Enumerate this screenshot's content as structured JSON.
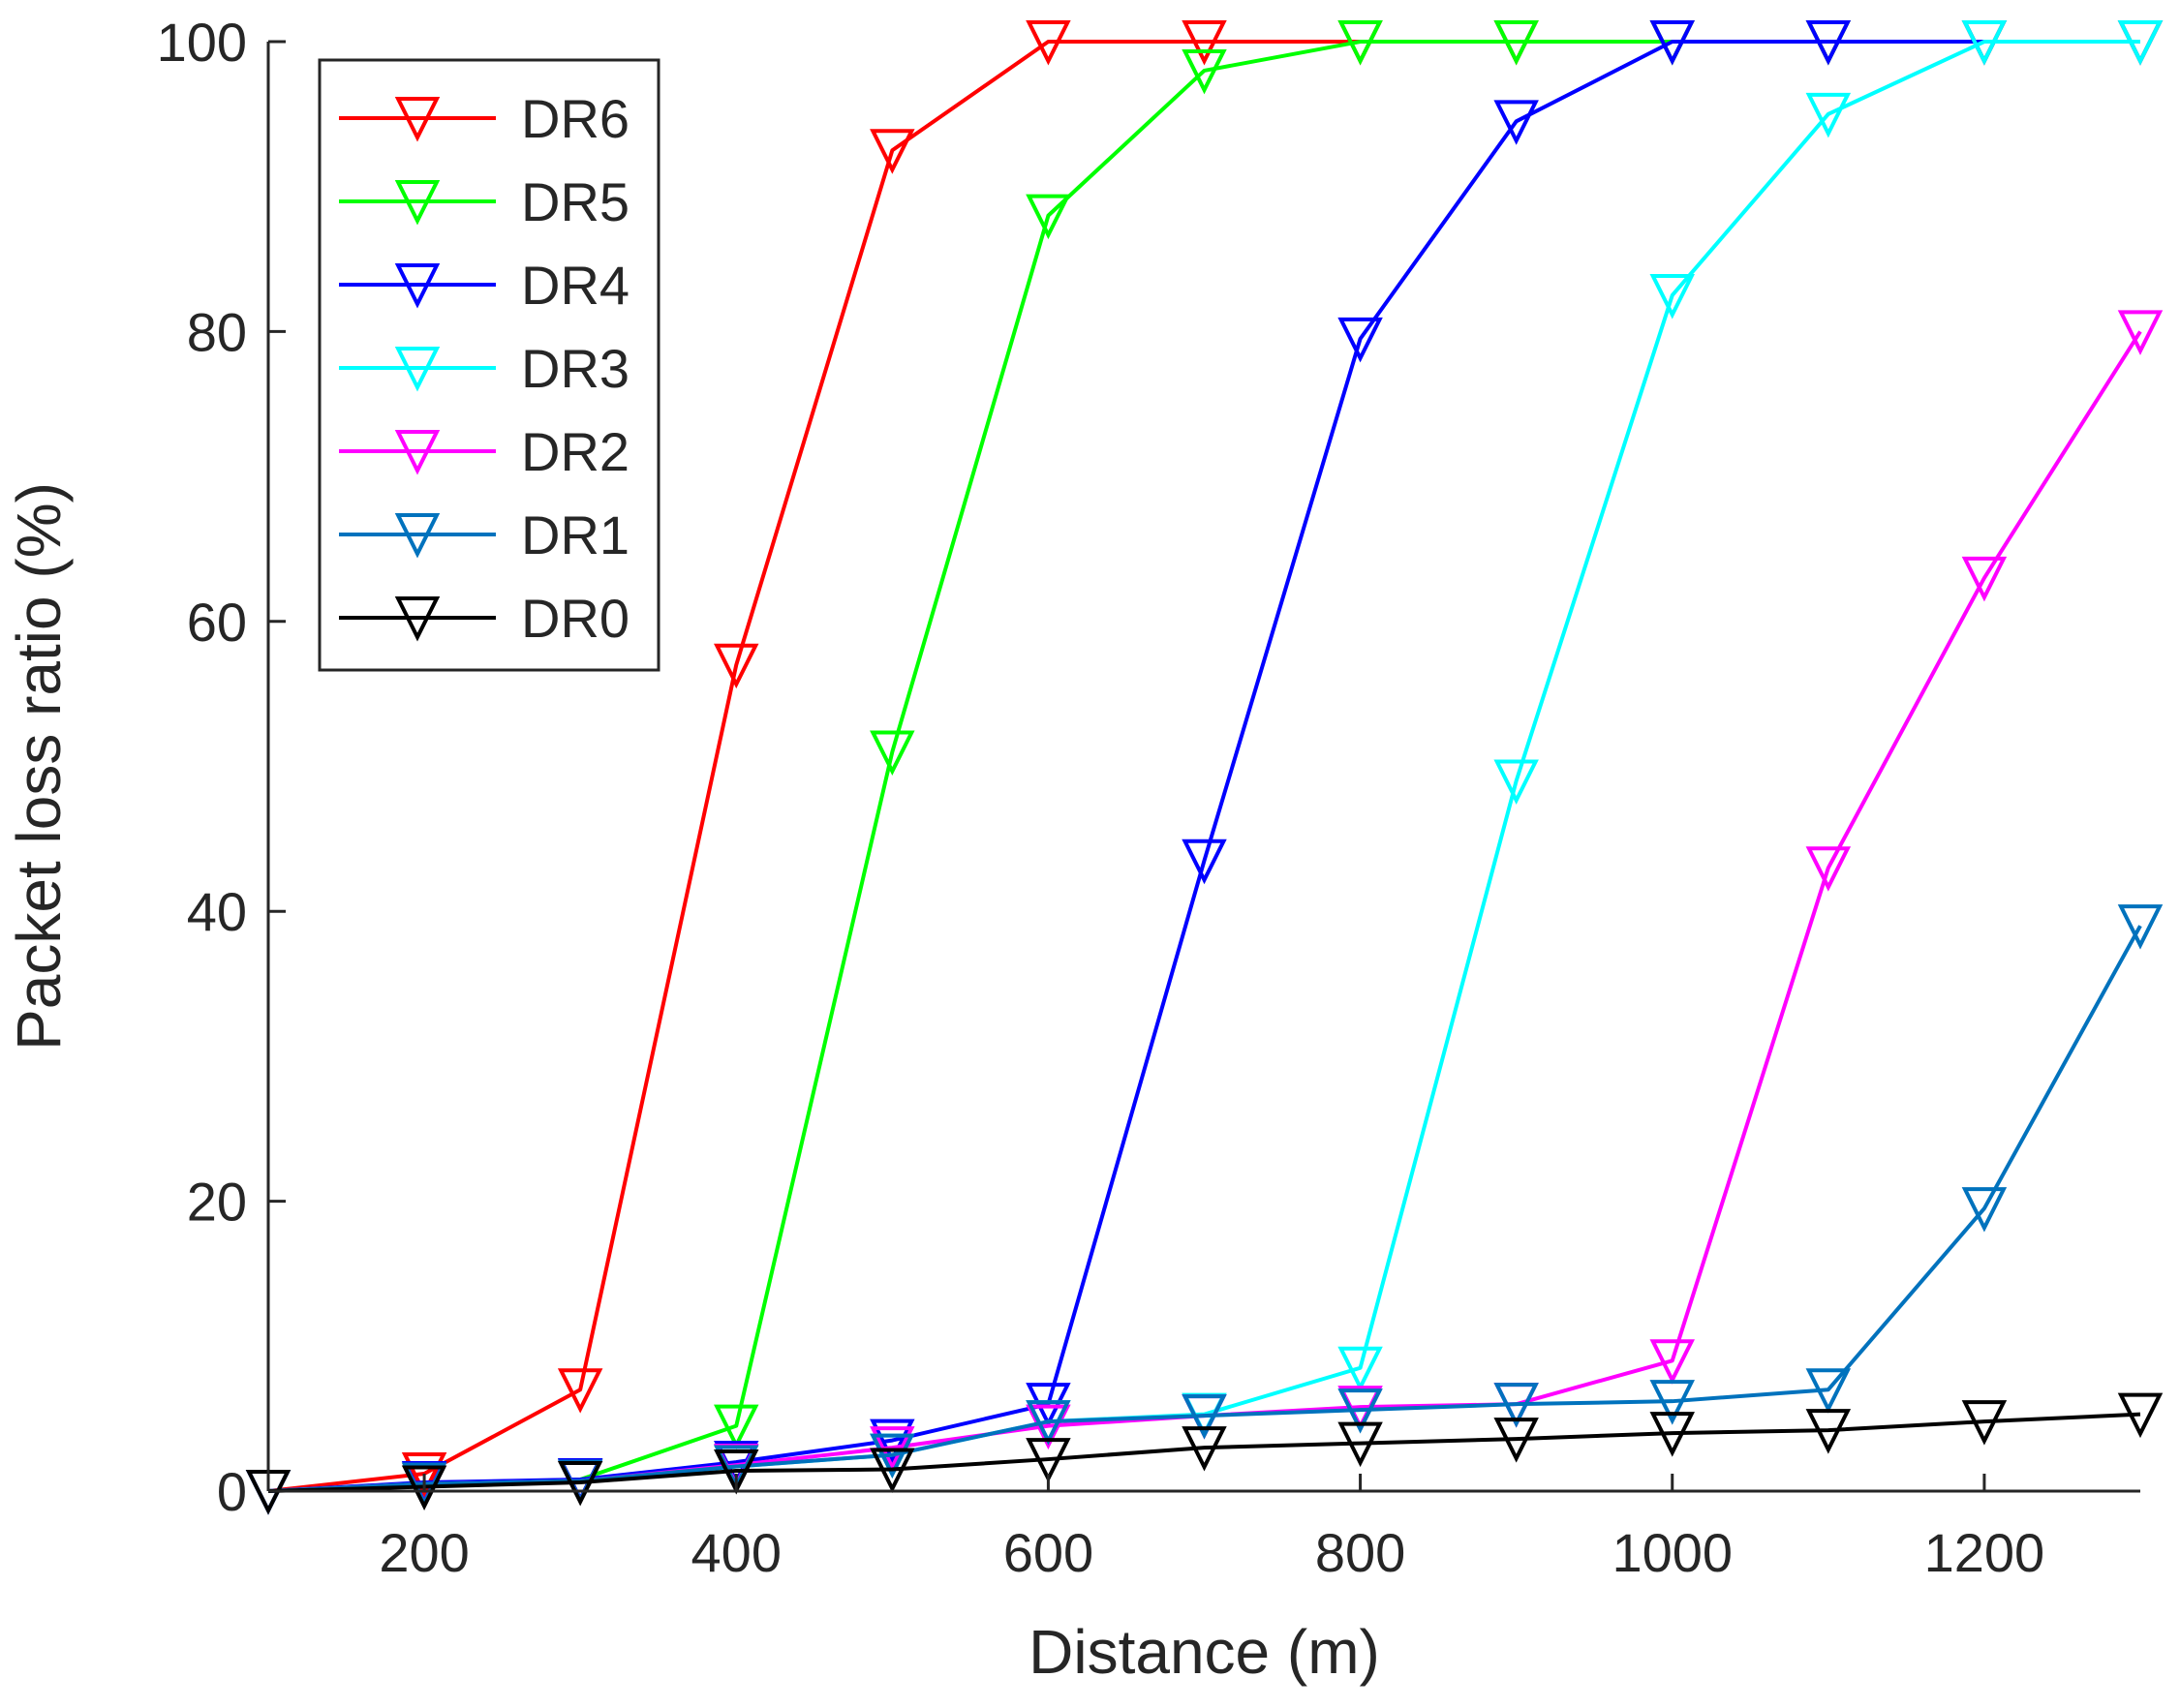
{
  "chart_data": {
    "type": "line",
    "title": "",
    "xlabel": "Distance (m)",
    "ylabel": "Packet loss ratio (%)",
    "xlim": [
      100,
      1300
    ],
    "ylim": [
      0,
      100
    ],
    "xticks": [
      200,
      400,
      600,
      800,
      1000,
      1200
    ],
    "yticks": [
      0,
      20,
      40,
      60,
      80,
      100
    ],
    "grid": false,
    "legend_position": "top-left",
    "marker": "down-triangle",
    "x": [
      100,
      200,
      300,
      400,
      500,
      600,
      700,
      800,
      900,
      1000,
      1100,
      1200,
      1300
    ],
    "series": [
      {
        "name": "DR6",
        "color": "#ff0000",
        "values": [
          0,
          1.2,
          7,
          57,
          92.5,
          100,
          100,
          100,
          100,
          100,
          100,
          100,
          100
        ]
      },
      {
        "name": "DR5",
        "color": "#00ff00",
        "values": [
          0,
          0.5,
          0.8,
          4.5,
          51,
          88,
          98,
          100,
          100,
          100,
          100,
          100,
          100
        ]
      },
      {
        "name": "DR4",
        "color": "#0000ff",
        "values": [
          0,
          0.6,
          0.8,
          2,
          3.5,
          6,
          43.5,
          79.5,
          94.5,
          100,
          100,
          100,
          100
        ]
      },
      {
        "name": "DR3",
        "color": "#00ffff",
        "values": [
          0,
          0.5,
          0.7,
          1.7,
          2.5,
          4.8,
          5.3,
          8.5,
          49,
          82.5,
          95,
          100,
          100
        ]
      },
      {
        "name": "DR2",
        "color": "#ff00ff",
        "values": [
          0,
          0.5,
          0.7,
          1.8,
          3,
          4.5,
          5.2,
          5.8,
          6,
          9,
          43,
          63,
          80
        ]
      },
      {
        "name": "DR1",
        "color": "#0072bd",
        "values": [
          0,
          0.5,
          0.7,
          1.7,
          2.5,
          4.8,
          5.2,
          5.6,
          6,
          6.2,
          7,
          19.5,
          39
        ]
      },
      {
        "name": "DR0",
        "color": "#000000",
        "values": [
          0,
          0.3,
          0.6,
          1.4,
          1.5,
          2.2,
          3,
          3.3,
          3.6,
          4,
          4.2,
          4.8,
          5.3
        ]
      }
    ]
  }
}
